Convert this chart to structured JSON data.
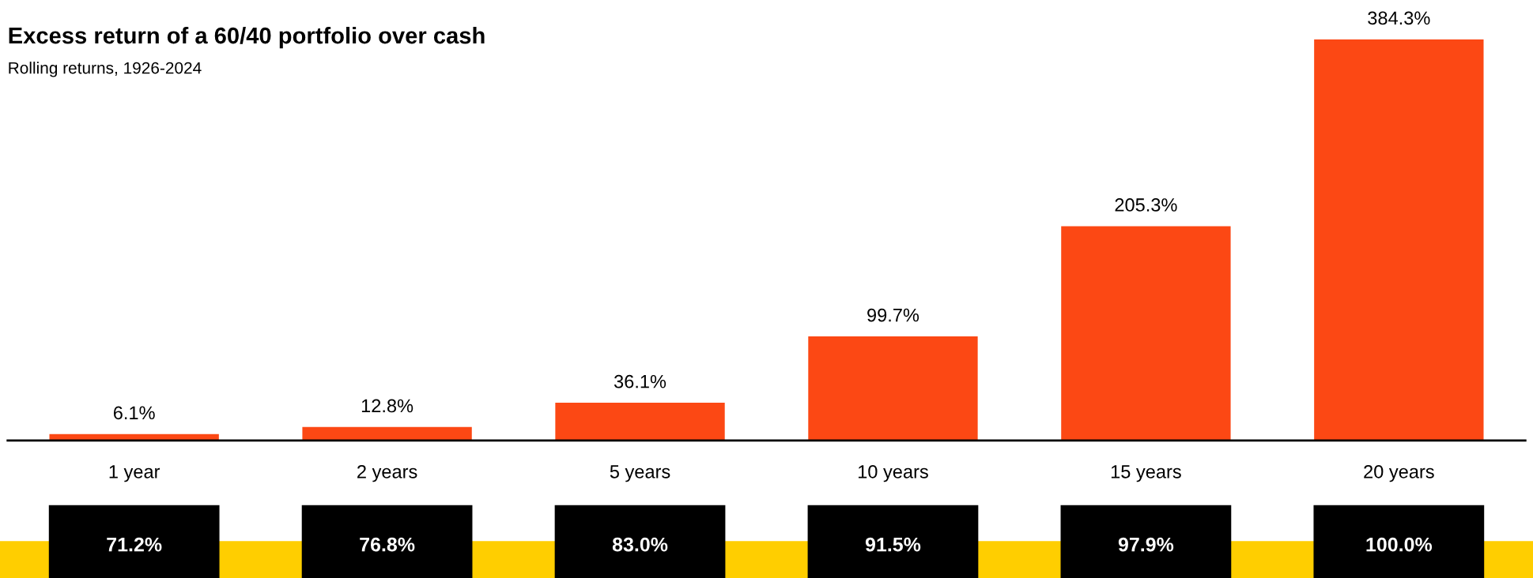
{
  "chart_data": {
    "type": "bar",
    "title": "Excess return of a 60/40 portfolio over cash",
    "subtitle": "Rolling returns, 1926-2024",
    "categories": [
      "1 year",
      "2 years",
      "5 years",
      "10 years",
      "15 years",
      "20 years"
    ],
    "values": [
      6.1,
      12.8,
      36.1,
      99.7,
      205.3,
      384.3
    ],
    "color": "#fc4814",
    "value_labels": [
      "6.1%",
      "12.8%",
      "36.1%",
      "99.7%",
      "205.3%",
      "384.3%"
    ],
    "tick_labels": "x",
    "grid": false,
    "legend": false,
    "annotations": [
      "71.2%",
      "76.8%",
      "83.0%",
      "91.5%",
      "97.9%",
      "100.0%"
    ]
  }
}
